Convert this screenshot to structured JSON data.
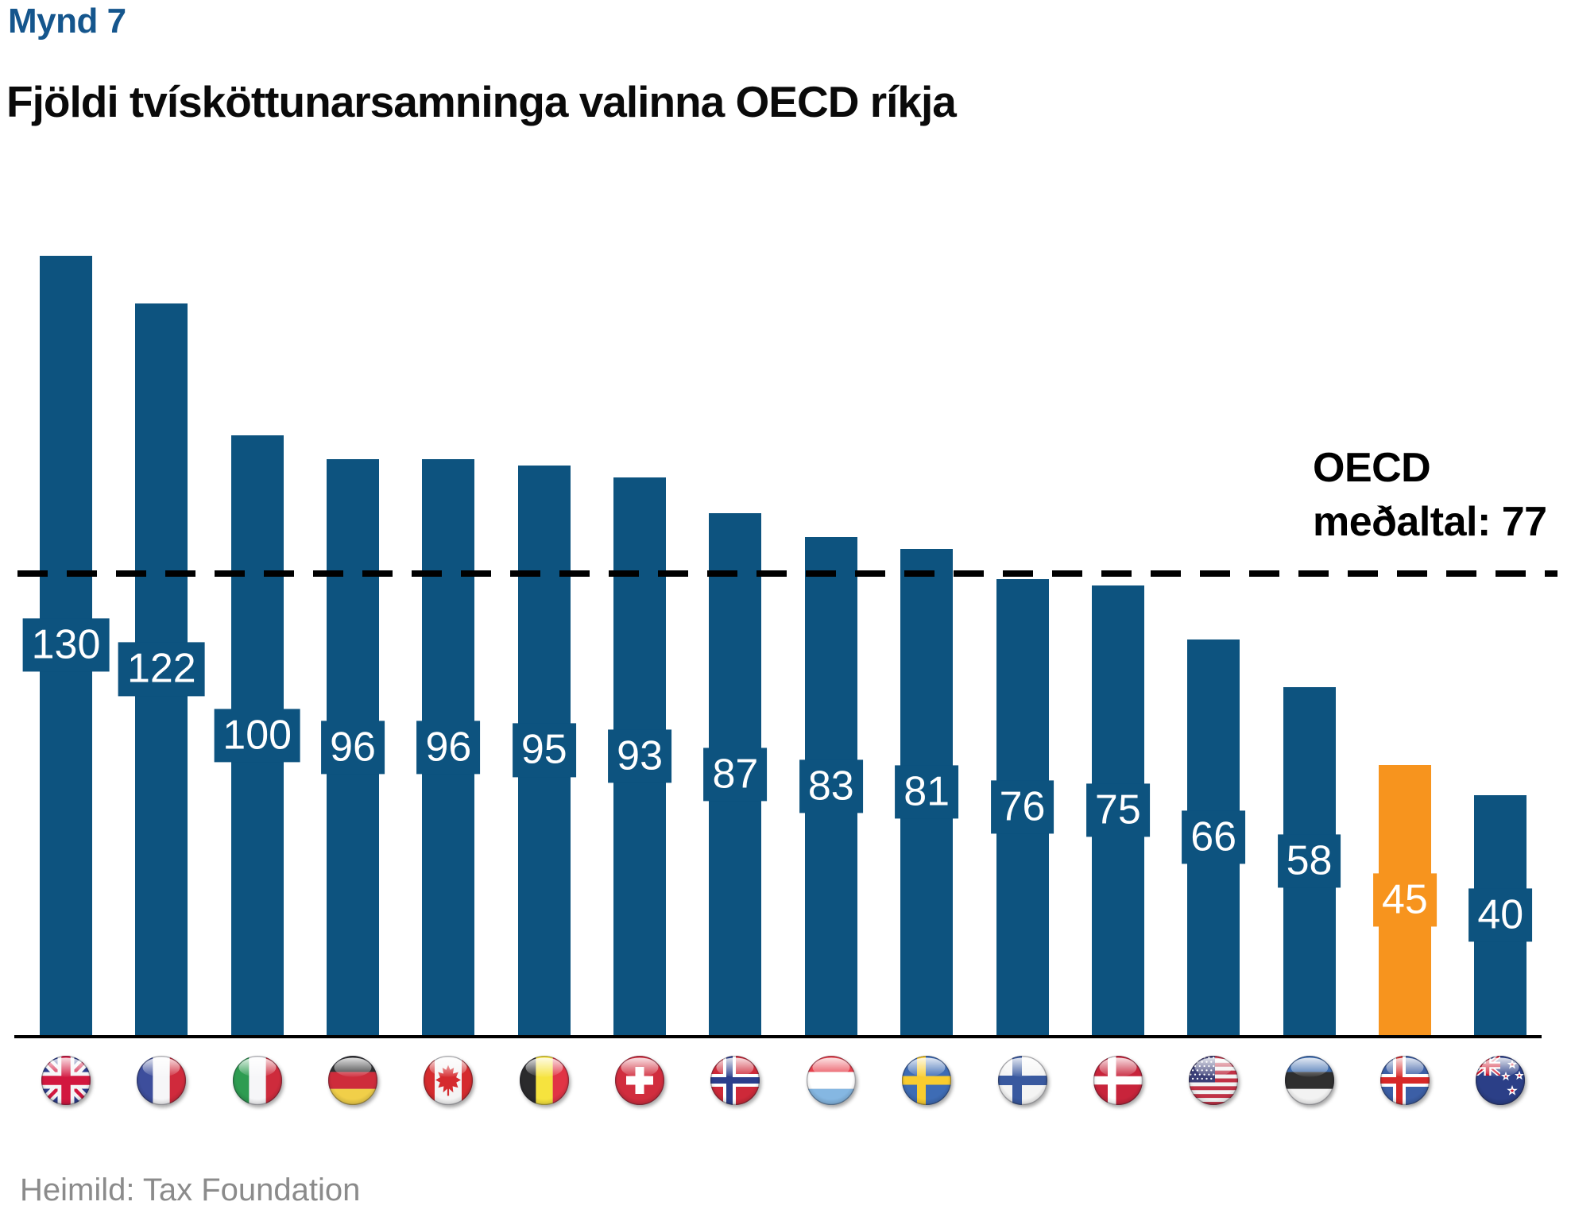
{
  "figure_label": "Mynd 7",
  "title": "Fjöldi tvísköttunarsamninga valinna OECD ríkja",
  "source": "Heimild: Tax Foundation",
  "average_line": {
    "label_line1": "OECD",
    "label_line2": "meðaltal: 77",
    "value": 77
  },
  "colors": {
    "bar": "#0D537F",
    "highlight": "#F7941E",
    "figure_label": "#15568D",
    "title_text": "#0a0a0a",
    "average_line": "#000000",
    "source_text": "#8B8B8B",
    "value_label_text": "#FFFFFF"
  },
  "chart_data": {
    "type": "bar",
    "title": "Fjöldi tvísköttunarsamninga valinna OECD ríkja",
    "categories": [
      "United Kingdom",
      "France",
      "Italy",
      "Germany",
      "Canada",
      "Belgium",
      "Switzerland",
      "Norway",
      "Luxembourg",
      "Sweden",
      "Finland",
      "Denmark",
      "United States",
      "Estonia",
      "Iceland",
      "New Zealand"
    ],
    "flags": [
      "gb",
      "fr",
      "it",
      "de",
      "ca",
      "be",
      "ch",
      "no",
      "lu",
      "se",
      "fi",
      "dk",
      "us",
      "ee",
      "is",
      "nz"
    ],
    "values": [
      130,
      122,
      100,
      96,
      96,
      95,
      93,
      87,
      83,
      81,
      76,
      75,
      66,
      58,
      45,
      40
    ],
    "highlighted_index": 14,
    "reference_line": {
      "value": 77,
      "label": "OECD meðaltal: 77"
    },
    "ylim": [
      0,
      140
    ],
    "value_labels": true,
    "grid": false,
    "legend": false
  }
}
